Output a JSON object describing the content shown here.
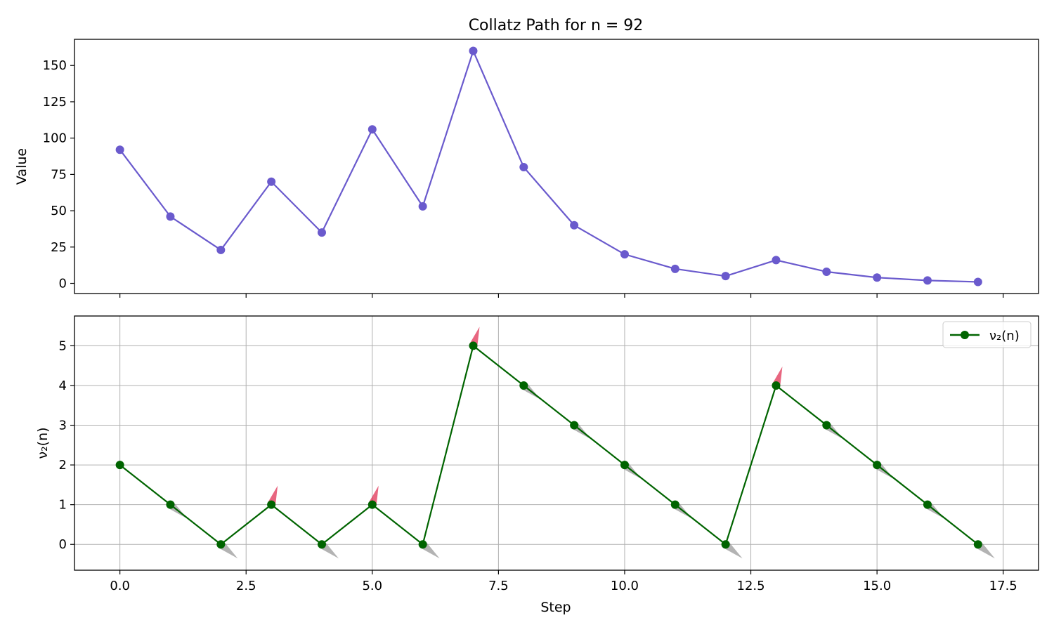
{
  "chart_data": [
    {
      "type": "line",
      "title": "Collatz Path for n = 92",
      "xlabel": "",
      "ylabel": "Value",
      "x": [
        0,
        1,
        2,
        3,
        4,
        5,
        6,
        7,
        8,
        9,
        10,
        11,
        12,
        13,
        14,
        15,
        16,
        17
      ],
      "series": [
        {
          "values": [
            92,
            46,
            23,
            70,
            35,
            106,
            53,
            160,
            80,
            40,
            20,
            10,
            5,
            16,
            8,
            4,
            2,
            1
          ],
          "color": "#6a5acd",
          "marker": "circle"
        }
      ],
      "xlim": [
        -0.9,
        18.2
      ],
      "ylim": [
        -7,
        168
      ],
      "yticks": [
        0,
        25,
        50,
        75,
        100,
        125,
        150
      ],
      "ytick_labels": [
        "0",
        "25",
        "50",
        "75",
        "100",
        "125",
        "150"
      ],
      "xticks": [
        0,
        2.5,
        5,
        7.5,
        10,
        12.5,
        15,
        17.5
      ],
      "xtick_labels_shown": false,
      "grid": false,
      "legend": null
    },
    {
      "type": "line",
      "title": "",
      "xlabel": "Step",
      "ylabel": "ν₂(n)",
      "x": [
        0,
        1,
        2,
        3,
        4,
        5,
        6,
        7,
        8,
        9,
        10,
        11,
        12,
        13,
        14,
        15,
        16,
        17
      ],
      "series": [
        {
          "name": "ν₂(n)",
          "values": [
            2,
            1,
            0,
            1,
            0,
            1,
            0,
            5,
            4,
            3,
            2,
            1,
            0,
            4,
            3,
            2,
            1,
            0
          ],
          "color": "#006400",
          "marker": "circle"
        }
      ],
      "arrows": {
        "up_color": "#dc143c",
        "down_color": "#808080",
        "up_steps": [
          3,
          5,
          7,
          13
        ],
        "down_steps": [
          1,
          2,
          4,
          6,
          8,
          9,
          10,
          11,
          12,
          14,
          15,
          16,
          17
        ]
      },
      "xlim": [
        -0.9,
        18.2
      ],
      "ylim": [
        -0.65,
        5.75
      ],
      "yticks": [
        0,
        1,
        2,
        3,
        4,
        5
      ],
      "ytick_labels": [
        "0",
        "1",
        "2",
        "3",
        "4",
        "5"
      ],
      "xticks": [
        0,
        2.5,
        5,
        7.5,
        10,
        12.5,
        15,
        17.5
      ],
      "xtick_labels": [
        "0.0",
        "2.5",
        "5.0",
        "7.5",
        "10.0",
        "12.5",
        "15.0",
        "17.5"
      ],
      "grid": true,
      "legend": "top-right"
    }
  ]
}
